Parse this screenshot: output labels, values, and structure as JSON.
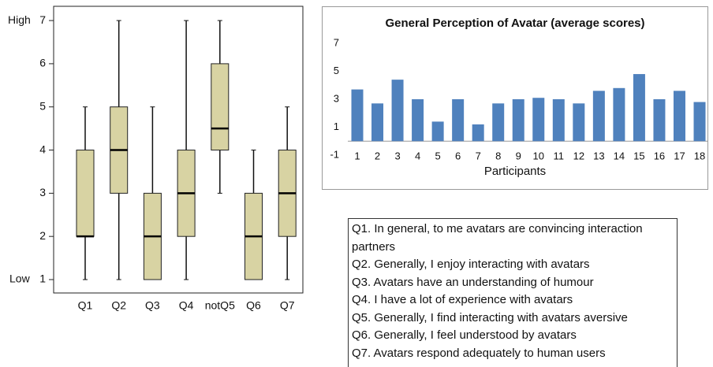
{
  "chart_data": [
    {
      "type": "box",
      "categories": [
        "Q1",
        "Q2",
        "Q3",
        "Q4",
        "notQ5",
        "Q6",
        "Q7"
      ],
      "min": [
        1,
        1,
        1,
        1,
        3,
        1,
        1
      ],
      "q1": [
        2,
        3,
        1,
        2,
        4,
        1,
        2
      ],
      "median": [
        2,
        4,
        2,
        3,
        4.5,
        2,
        3
      ],
      "q3": [
        4,
        5,
        3,
        4,
        6,
        3,
        4
      ],
      "max": [
        5,
        7,
        5,
        7,
        7,
        4,
        5
      ],
      "color": "#d8d3a3",
      "ylim": [
        0.69,
        7.33
      ],
      "yticks": [
        1,
        2,
        3,
        4,
        5,
        6,
        7
      ],
      "y_high_label": "High",
      "y_low_label": "Low"
    },
    {
      "type": "bar",
      "title": "General Perception of Avatar (average scores)",
      "x_label": "Participants",
      "categories": [
        "1",
        "2",
        "3",
        "4",
        "5",
        "6",
        "7",
        "8",
        "9",
        "10",
        "11",
        "12",
        "13",
        "14",
        "15",
        "16",
        "17",
        "18"
      ],
      "values": [
        3.7,
        2.7,
        4.4,
        3.0,
        1.4,
        3.0,
        1.2,
        2.7,
        3.0,
        3.1,
        3.0,
        2.7,
        3.6,
        3.8,
        4.8,
        3.0,
        3.6,
        2.8
      ],
      "color": "#4f81bd",
      "ylim": [
        -1,
        7
      ],
      "yticks": [
        -1,
        1,
        3,
        5,
        7
      ],
      "grid": false
    }
  ],
  "notes": [
    "Q1. In general, to me avatars are convincing interaction partners",
    "Q2. Generally, I enjoy interacting with avatars",
    "Q3. Avatars have an understanding of humour",
    "Q4. I have a lot of experience with avatars",
    "Q5. Generally, I find interacting with avatars aversive",
    "Q6. Generally, I feel understood by avatars",
    "Q7. Avatars respond adequately to human users"
  ]
}
